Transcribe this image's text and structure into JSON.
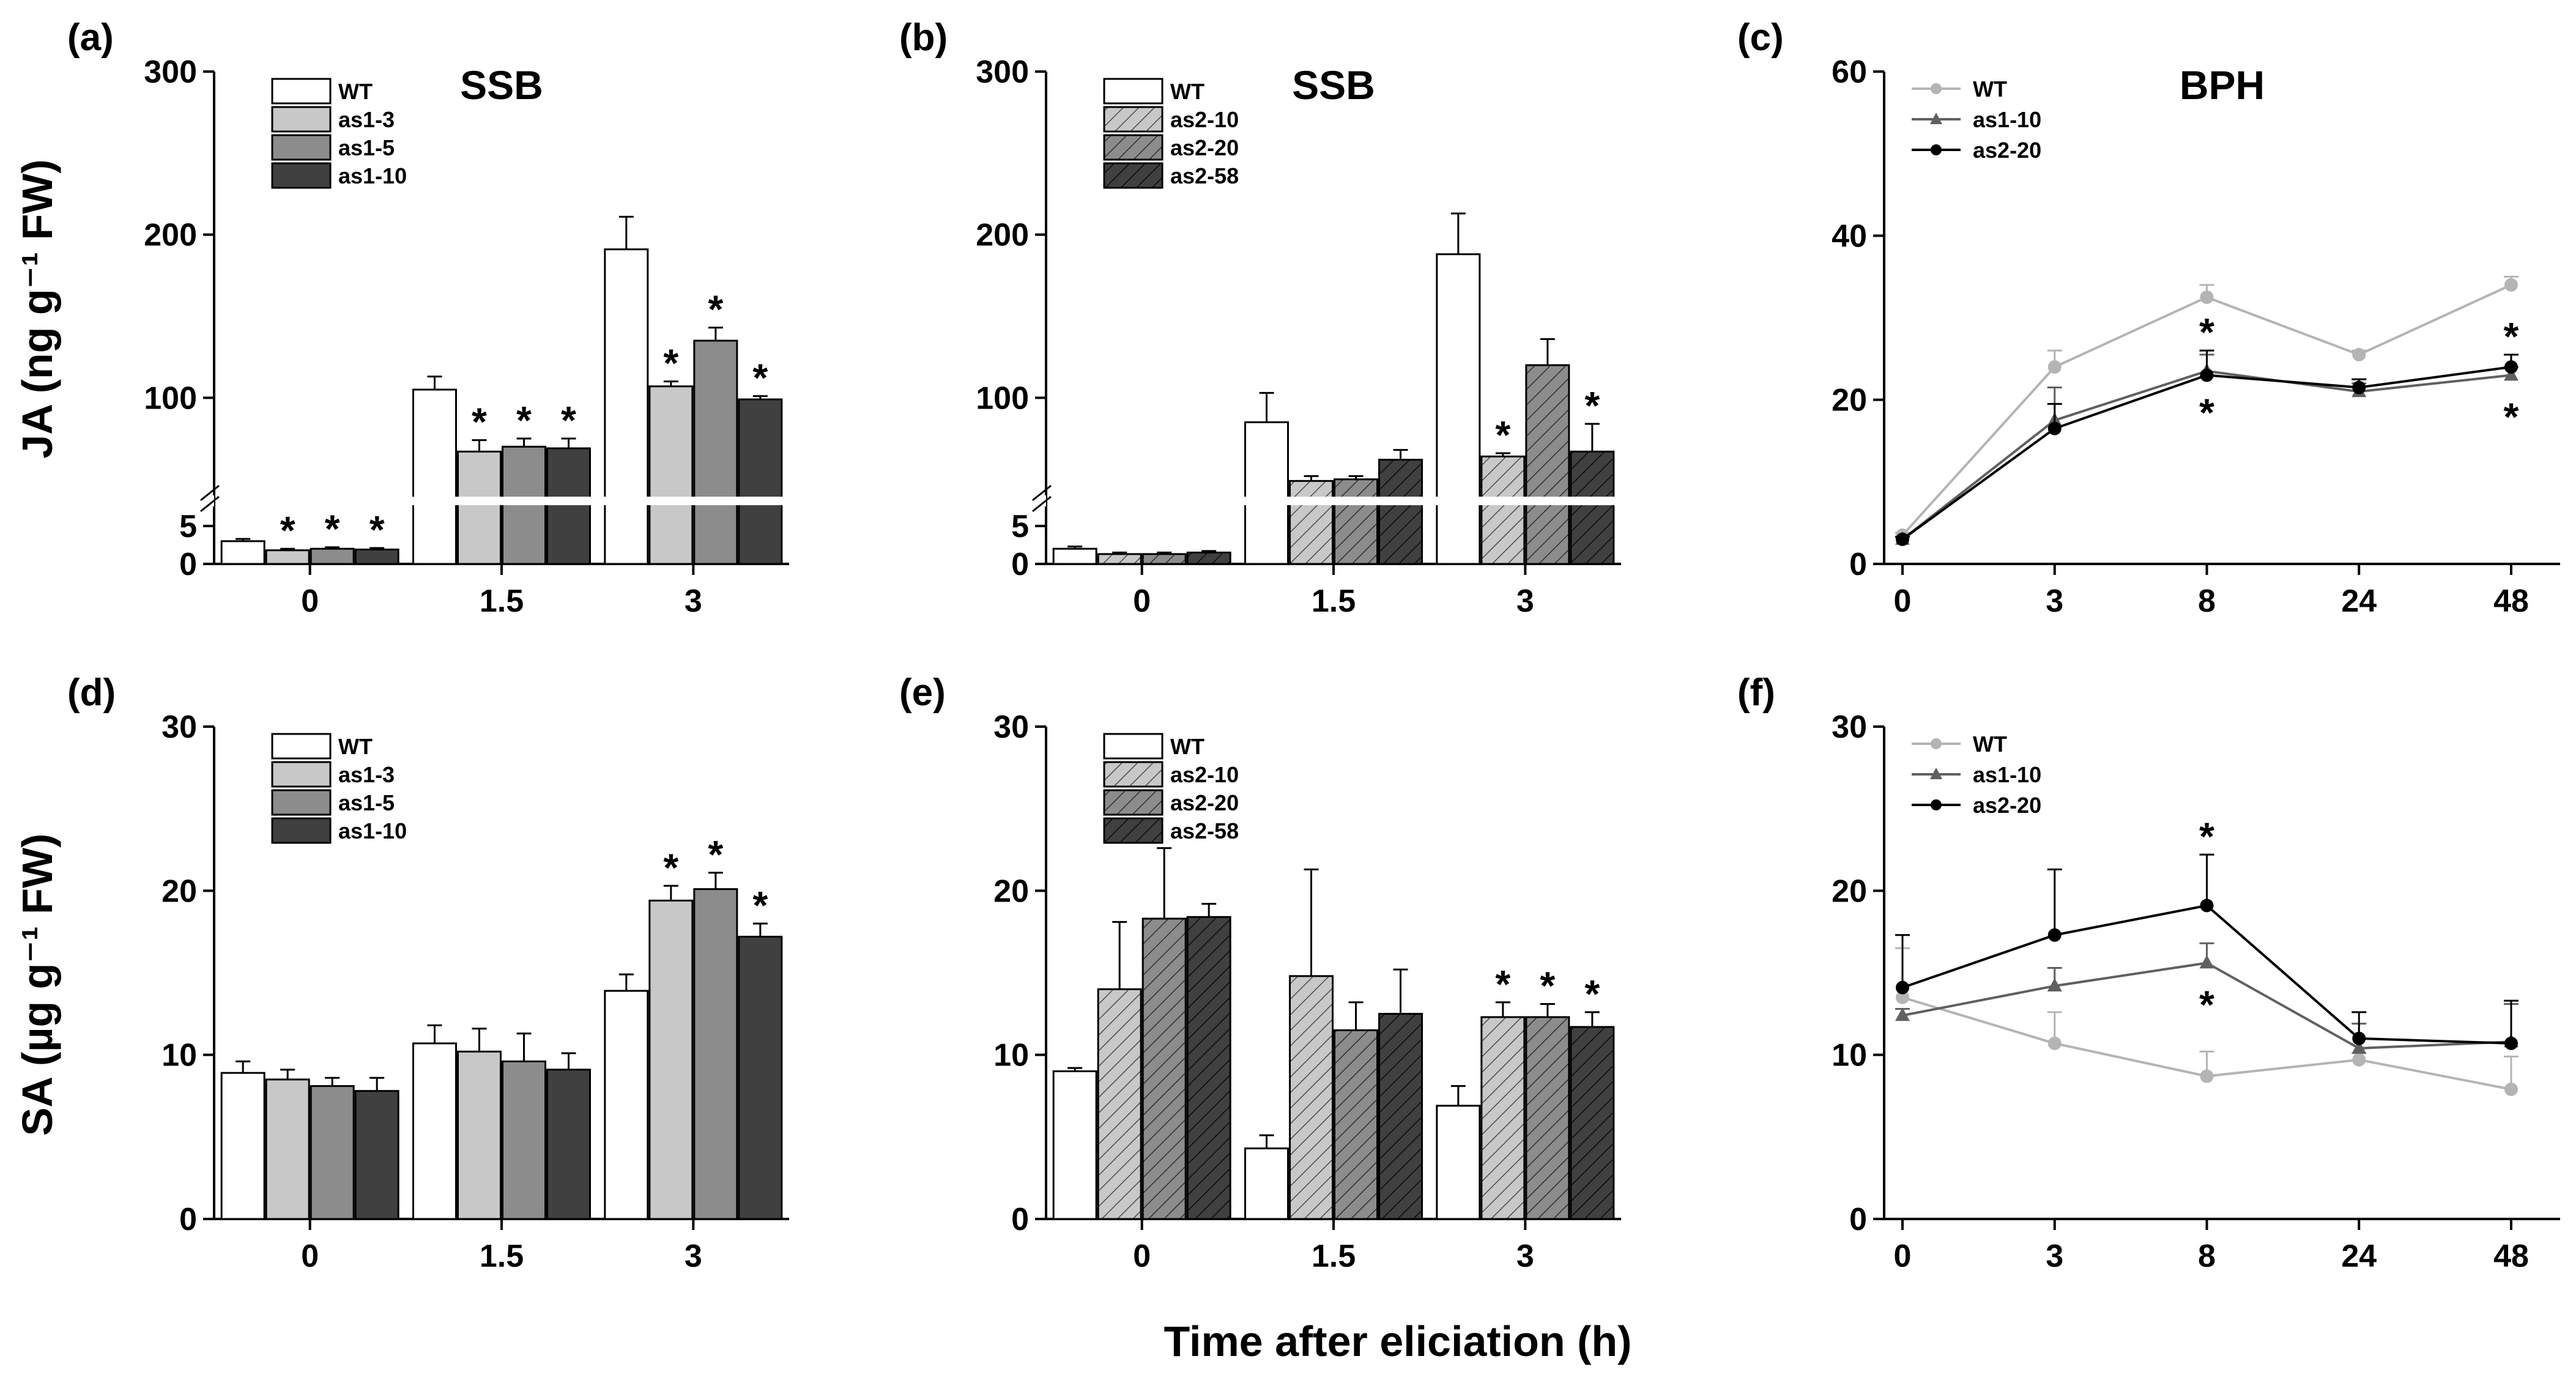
{
  "figure": {
    "xlabel": "Time after eliciation (h)",
    "ylabel_top": "JA (ng g⁻¹ FW)",
    "ylabel_bottom": "SA (µg g⁻¹ FW)"
  },
  "colors": {
    "WT": "#ffffff",
    "light": "#c8c8c8",
    "mid": "#8c8c8c",
    "dark": "#404040",
    "line_WT": "#b4b4b4",
    "line_as1": "#606060",
    "line_as2": "#000000"
  },
  "chart_data": [
    {
      "id": "a",
      "panel_label": "(a)",
      "title": "SSB",
      "type": "bar",
      "categories": [
        "0",
        "1.5",
        "3"
      ],
      "ylim": [
        0,
        300
      ],
      "yticks": [
        0,
        5,
        100,
        200,
        300
      ],
      "axis_break": true,
      "series": [
        {
          "name": "WT",
          "values": [
            3,
            105,
            191
          ],
          "errors": [
            0.3,
            8,
            20
          ],
          "stars": [
            false,
            false,
            false
          ],
          "fill": "WT",
          "hatch": false
        },
        {
          "name": "as1-3",
          "values": [
            1.8,
            67,
            107
          ],
          "errors": [
            0.2,
            7,
            3
          ],
          "stars": [
            true,
            true,
            true
          ],
          "fill": "light",
          "hatch": false
        },
        {
          "name": "as1-5",
          "values": [
            2,
            70,
            135
          ],
          "errors": [
            0.2,
            5,
            8
          ],
          "stars": [
            true,
            true,
            true
          ],
          "fill": "mid",
          "hatch": false
        },
        {
          "name": "as1-10",
          "values": [
            1.9,
            69,
            99
          ],
          "errors": [
            0.2,
            6,
            2
          ],
          "stars": [
            true,
            true,
            true
          ],
          "fill": "dark",
          "hatch": false
        }
      ]
    },
    {
      "id": "b",
      "panel_label": "(b)",
      "title": "SSB",
      "type": "bar",
      "categories": [
        "0",
        "1.5",
        "3"
      ],
      "ylim": [
        0,
        300
      ],
      "yticks": [
        0,
        5,
        100,
        200,
        300
      ],
      "axis_break": true,
      "series": [
        {
          "name": "WT",
          "values": [
            2,
            85,
            188
          ],
          "errors": [
            0.3,
            18,
            25
          ],
          "stars": [
            false,
            false,
            false
          ],
          "fill": "WT",
          "hatch": false
        },
        {
          "name": "as2-10",
          "values": [
            1.3,
            49,
            64
          ],
          "errors": [
            0.2,
            3,
            2
          ],
          "stars": [
            false,
            false,
            true
          ],
          "fill": "light",
          "hatch": true
        },
        {
          "name": "as2-20",
          "values": [
            1.3,
            50,
            120
          ],
          "errors": [
            0.2,
            2,
            16
          ],
          "stars": [
            false,
            false,
            false
          ],
          "fill": "mid",
          "hatch": true
        },
        {
          "name": "as2-58",
          "values": [
            1.5,
            62,
            67
          ],
          "errors": [
            0.2,
            6,
            17
          ],
          "stars": [
            false,
            false,
            true
          ],
          "fill": "dark",
          "hatch": true
        }
      ]
    },
    {
      "id": "c",
      "panel_label": "(c)",
      "title": "BPH",
      "type": "line",
      "categories": [
        "0",
        "3",
        "8",
        "24",
        "48"
      ],
      "ylim": [
        0,
        60
      ],
      "yticks": [
        0,
        20,
        40,
        60
      ],
      "series": [
        {
          "name": "WT",
          "values": [
            3.5,
            24,
            32.5,
            25.5,
            34
          ],
          "errors": [
            0.3,
            2,
            1.5,
            0.5,
            1
          ],
          "stars_above": [
            false,
            false,
            false,
            false,
            false
          ],
          "stars_below": [
            false,
            false,
            false,
            false,
            false
          ],
          "color": "line_WT",
          "marker": "circle"
        },
        {
          "name": "as1-10",
          "values": [
            3,
            17.5,
            23.5,
            21,
            23
          ],
          "errors": [
            0.3,
            4,
            2,
            1,
            1
          ],
          "stars_above": [
            false,
            false,
            false,
            false,
            false
          ],
          "stars_below": [
            false,
            false,
            true,
            false,
            true
          ],
          "color": "line_as1",
          "marker": "triangle"
        },
        {
          "name": "as2-20",
          "values": [
            3,
            16.5,
            23,
            21.5,
            24
          ],
          "errors": [
            0.3,
            3,
            3,
            1,
            1.5
          ],
          "stars_above": [
            false,
            false,
            true,
            false,
            true
          ],
          "stars_below": [
            false,
            false,
            false,
            false,
            false
          ],
          "color": "line_as2",
          "marker": "circle"
        }
      ]
    },
    {
      "id": "d",
      "panel_label": "(d)",
      "title": "",
      "type": "bar",
      "categories": [
        "0",
        "1.5",
        "3"
      ],
      "ylim": [
        0,
        30
      ],
      "yticks": [
        0,
        10,
        20,
        30
      ],
      "axis_break": false,
      "series": [
        {
          "name": "WT",
          "values": [
            8.9,
            10.7,
            13.9
          ],
          "errors": [
            0.7,
            1.1,
            1.0
          ],
          "stars": [
            false,
            false,
            false
          ],
          "fill": "WT",
          "hatch": false
        },
        {
          "name": "as1-3",
          "values": [
            8.5,
            10.2,
            19.4
          ],
          "errors": [
            0.6,
            1.4,
            0.9
          ],
          "stars": [
            false,
            false,
            true
          ],
          "fill": "light",
          "hatch": false
        },
        {
          "name": "as1-5",
          "values": [
            8.1,
            9.6,
            20.1
          ],
          "errors": [
            0.5,
            1.7,
            1.0
          ],
          "stars": [
            false,
            false,
            true
          ],
          "fill": "mid",
          "hatch": false
        },
        {
          "name": "as1-10",
          "values": [
            7.8,
            9.1,
            17.2
          ],
          "errors": [
            0.8,
            1.0,
            0.8
          ],
          "stars": [
            false,
            false,
            true
          ],
          "fill": "dark",
          "hatch": false
        }
      ]
    },
    {
      "id": "e",
      "panel_label": "(e)",
      "title": "",
      "type": "bar",
      "categories": [
        "0",
        "1.5",
        "3"
      ],
      "ylim": [
        0,
        30
      ],
      "yticks": [
        0,
        10,
        20,
        30
      ],
      "axis_break": false,
      "series": [
        {
          "name": "WT",
          "values": [
            9.0,
            4.3,
            6.9
          ],
          "errors": [
            0.2,
            0.8,
            1.2
          ],
          "stars": [
            false,
            false,
            false
          ],
          "fill": "WT",
          "hatch": false
        },
        {
          "name": "as2-10",
          "values": [
            14.0,
            14.8,
            12.3
          ],
          "errors": [
            4.1,
            6.5,
            0.9
          ],
          "stars": [
            false,
            false,
            true
          ],
          "fill": "light",
          "hatch": true
        },
        {
          "name": "as2-20",
          "values": [
            18.3,
            11.5,
            12.3
          ],
          "errors": [
            4.3,
            1.7,
            0.8
          ],
          "stars": [
            false,
            false,
            true
          ],
          "fill": "mid",
          "hatch": true
        },
        {
          "name": "as2-58",
          "values": [
            18.4,
            12.5,
            11.7
          ],
          "errors": [
            0.8,
            2.7,
            0.9
          ],
          "stars": [
            false,
            false,
            true
          ],
          "fill": "dark",
          "hatch": true
        }
      ]
    },
    {
      "id": "f",
      "panel_label": "(f)",
      "title": "",
      "type": "line",
      "categories": [
        "0",
        "3",
        "8",
        "24",
        "48"
      ],
      "ylim": [
        0,
        30
      ],
      "yticks": [
        0,
        10,
        20,
        30
      ],
      "series": [
        {
          "name": "WT",
          "values": [
            13.5,
            10.7,
            8.7,
            9.7,
            7.9
          ],
          "errors": [
            3.0,
            1.9,
            1.5,
            0.4,
            2.0
          ],
          "stars_above": [
            false,
            false,
            false,
            false,
            false
          ],
          "stars_below": [
            false,
            false,
            false,
            false,
            false
          ],
          "color": "line_WT",
          "marker": "circle"
        },
        {
          "name": "as1-10",
          "values": [
            12.4,
            14.2,
            15.6,
            10.4,
            10.8
          ],
          "errors": [
            0.4,
            1.1,
            1.2,
            1.5,
            2.3
          ],
          "stars_above": [
            false,
            false,
            false,
            false,
            false
          ],
          "stars_below": [
            false,
            false,
            true,
            false,
            false
          ],
          "color": "line_as1",
          "marker": "triangle"
        },
        {
          "name": "as2-20",
          "values": [
            14.1,
            17.3,
            19.1,
            11.0,
            10.7
          ],
          "errors": [
            3.2,
            4.0,
            3.1,
            1.6,
            2.6
          ],
          "stars_above": [
            false,
            false,
            true,
            false,
            false
          ],
          "stars_below": [
            false,
            false,
            false,
            false,
            false
          ],
          "color": "line_as2",
          "marker": "circle"
        }
      ]
    }
  ]
}
